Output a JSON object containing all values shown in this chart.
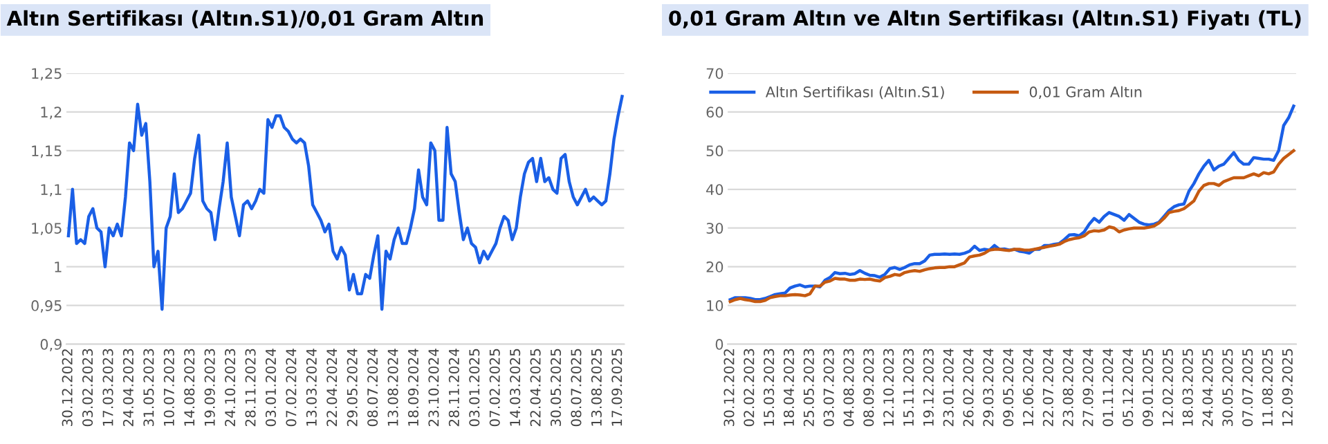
{
  "chart_data": [
    {
      "type": "line",
      "title": "Altın Sertifikası (Altın.S1)/0,01 Gram Altın",
      "categories": [
        "30.12.2022",
        null,
        null,
        null,
        null,
        "03.02.2023",
        null,
        null,
        null,
        null,
        "17.03.2023",
        null,
        null,
        null,
        null,
        "24.04.2023",
        null,
        null,
        null,
        null,
        "31.05.2023",
        null,
        null,
        null,
        null,
        "10.07.2023",
        null,
        null,
        null,
        null,
        "14.08.2023",
        null,
        null,
        null,
        null,
        "19.09.2023",
        null,
        null,
        null,
        null,
        "24.10.2023",
        null,
        null,
        null,
        null,
        "28.11.2023",
        null,
        null,
        null,
        null,
        "03.01.2024",
        null,
        null,
        null,
        null,
        "07.02.2024",
        null,
        null,
        null,
        null,
        "13.03.2024",
        null,
        null,
        null,
        null,
        "22.04.2024",
        null,
        null,
        null,
        null,
        "29.05.2024",
        null,
        null,
        null,
        null,
        "08.07.2024",
        null,
        null,
        null,
        null,
        "13.08.2024",
        null,
        null,
        null,
        null,
        "18.09.2024",
        null,
        null,
        null,
        null,
        "23.10.2024",
        null,
        null,
        null,
        null,
        "28.11.2024",
        null,
        null,
        null,
        null,
        "03.01.2025",
        null,
        null,
        null,
        null,
        "07.02.2025",
        null,
        null,
        null,
        null,
        "14.03.2025",
        null,
        null,
        null,
        null,
        "22.04.2025",
        null,
        null,
        null,
        null,
        "30.05.2025",
        null,
        null,
        null,
        null,
        "08.07.2025",
        null,
        null,
        null,
        null,
        "13.08.2025",
        null,
        null,
        null,
        null,
        "17.09.2025",
        null
      ],
      "series": [
        {
          "color": "#1a5fe6",
          "values": [
            1.04,
            1.1,
            1.03,
            1.035,
            1.03,
            1.065,
            1.075,
            1.05,
            1.045,
            1.0,
            1.05,
            1.04,
            1.055,
            1.04,
            1.09,
            1.16,
            1.15,
            1.21,
            1.17,
            1.185,
            1.11,
            1.0,
            1.02,
            0.945,
            1.05,
            1.065,
            1.12,
            1.07,
            1.075,
            1.085,
            1.095,
            1.14,
            1.17,
            1.085,
            1.075,
            1.07,
            1.035,
            1.075,
            1.11,
            1.16,
            1.09,
            1.065,
            1.04,
            1.08,
            1.085,
            1.075,
            1.085,
            1.1,
            1.095,
            1.19,
            1.18,
            1.195,
            1.195,
            1.18,
            1.175,
            1.165,
            1.16,
            1.165,
            1.16,
            1.13,
            1.08,
            1.07,
            1.06,
            1.045,
            1.055,
            1.02,
            1.01,
            1.025,
            1.015,
            0.97,
            0.99,
            0.965,
            0.965,
            0.99,
            0.985,
            1.015,
            1.04,
            0.945,
            1.02,
            1.01,
            1.035,
            1.05,
            1.03,
            1.03,
            1.05,
            1.075,
            1.125,
            1.09,
            1.08,
            1.16,
            1.15,
            1.06,
            1.06,
            1.18,
            1.12,
            1.11,
            1.07,
            1.035,
            1.05,
            1.03,
            1.025,
            1.005,
            1.02,
            1.01,
            1.02,
            1.03,
            1.05,
            1.065,
            1.06,
            1.035,
            1.05,
            1.09,
            1.12,
            1.135,
            1.14,
            1.11,
            1.14,
            1.11,
            1.115,
            1.1,
            1.095,
            1.14,
            1.145,
            1.11,
            1.09,
            1.08,
            1.09,
            1.1,
            1.085,
            1.09,
            1.085,
            1.08,
            1.085,
            1.12,
            1.165,
            1.195,
            1.22
          ]
        }
      ],
      "ylim": [
        0.9,
        1.25
      ],
      "yticks": [
        {
          "value": 0.9,
          "label": "0,9"
        },
        {
          "value": 0.95,
          "label": "0,95"
        },
        {
          "value": 1,
          "label": "1"
        },
        {
          "value": 1.05,
          "label": "1,05"
        },
        {
          "value": 1.1,
          "label": "1,1"
        },
        {
          "value": 1.15,
          "label": "1,15"
        },
        {
          "value": 1.2,
          "label": "1,2"
        },
        {
          "value": 1.25,
          "label": "1,25"
        }
      ],
      "grid": "y",
      "legend": false,
      "marker": "none",
      "line_style": "solid"
    },
    {
      "type": "line",
      "title": "0,01 Gram Altın ve Altın Sertifikası (Altın.S1) Fiyatı (TL)",
      "categories": [
        "30.12.2022",
        null,
        null,
        null,
        "02.02.2023",
        null,
        null,
        null,
        "15.03.2023",
        null,
        null,
        null,
        "18.04.2023",
        null,
        null,
        null,
        "25.05.2023",
        null,
        null,
        null,
        "03.07.2023",
        null,
        null,
        null,
        "04.08.2023",
        null,
        null,
        null,
        "08.09.2023",
        null,
        null,
        null,
        "12.10.2023",
        null,
        null,
        null,
        "15.11.2023",
        null,
        null,
        null,
        "19.12.2023",
        null,
        null,
        null,
        "23.01.2024",
        null,
        null,
        null,
        "26.02.2024",
        null,
        null,
        null,
        "29.03.2024",
        null,
        null,
        null,
        "09.05.2024",
        null,
        null,
        null,
        "12.06.2024",
        null,
        null,
        null,
        "22.07.2024",
        null,
        null,
        null,
        "23.08.2024",
        null,
        null,
        null,
        "27.09.2024",
        null,
        null,
        null,
        "01.11.2024",
        null,
        null,
        null,
        "05.12.2024",
        null,
        null,
        null,
        "09.01.2025",
        null,
        null,
        null,
        "12.02.2025",
        null,
        null,
        null,
        "18.03.2025",
        null,
        null,
        null,
        "24.04.2025",
        null,
        null,
        null,
        "30.05.2025",
        null,
        null,
        null,
        "07.07.2025",
        null,
        null,
        null,
        "11.08.2025",
        null,
        null,
        null,
        "12.09.2025",
        null
      ],
      "series": [
        {
          "name": "Altın Sertifikası (Altın.S1)",
          "color": "#1a5fe6",
          "values": [
            11.5,
            12,
            12,
            12,
            11.8,
            11.5,
            11.5,
            11.8,
            12.3,
            12.8,
            13,
            13.2,
            14.5,
            15,
            15.3,
            14.8,
            15,
            15,
            14.8,
            16.5,
            17.2,
            18.5,
            18.2,
            18.3,
            18,
            18.2,
            19,
            18.3,
            17.8,
            17.7,
            17.3,
            18,
            19.5,
            19.8,
            19.3,
            19.8,
            20.5,
            20.8,
            20.8,
            21.5,
            23,
            23.2,
            23.2,
            23.3,
            23.2,
            23.3,
            23.2,
            23.5,
            24,
            25.3,
            24.2,
            24.5,
            24.3,
            25.5,
            24.5,
            24.6,
            24.3,
            24.5,
            24,
            23.8,
            23.5,
            24.5,
            24.5,
            25.5,
            25.5,
            25.8,
            26,
            27,
            28.2,
            28.3,
            28,
            29,
            31,
            32.5,
            31.5,
            33,
            34,
            33.5,
            33,
            32,
            33.5,
            32.5,
            31.5,
            31,
            30.8,
            31,
            31.5,
            33,
            34.5,
            35.5,
            36,
            36.2,
            39.5,
            41.5,
            44,
            46,
            47.5,
            45,
            46,
            46.5,
            48,
            49.5,
            47.5,
            46.5,
            46.5,
            48.2,
            48,
            47.8,
            47.8,
            47.5,
            50,
            56.5,
            58.5,
            61.5
          ]
        },
        {
          "name": "0,01 Gram Altın",
          "color": "#c55a11",
          "values": [
            11,
            11.5,
            11.8,
            11.5,
            11.3,
            11,
            11,
            11.3,
            12,
            12.3,
            12.5,
            12.5,
            12.7,
            12.8,
            12.7,
            12.5,
            13,
            15,
            15,
            16,
            16.3,
            17,
            16.8,
            16.8,
            16.5,
            16.5,
            16.8,
            16.7,
            16.8,
            16.5,
            16.3,
            17.2,
            17.5,
            18,
            17.8,
            18.5,
            18.8,
            19,
            18.8,
            19.2,
            19.5,
            19.7,
            19.8,
            19.8,
            20,
            20,
            20.5,
            21,
            22.5,
            22.8,
            23,
            23.5,
            24.3,
            24.5,
            24.5,
            24.3,
            24.2,
            24.5,
            24.5,
            24.3,
            24.3,
            24.5,
            24.8,
            25,
            25.3,
            25.5,
            25.8,
            26.5,
            27,
            27.3,
            27.5,
            28,
            29,
            29.3,
            29.2,
            29.5,
            30.3,
            30,
            29,
            29.5,
            29.8,
            30,
            30,
            30,
            30.2,
            30.5,
            31.3,
            32.5,
            34,
            34.3,
            34.5,
            35,
            36,
            37,
            39.5,
            41,
            41.5,
            41.5,
            41,
            42,
            42.5,
            43,
            43,
            43,
            43.5,
            44,
            43.5,
            44.3,
            44,
            44.5,
            46.5,
            48,
            49,
            50
          ]
        }
      ],
      "ylim": [
        0,
        70
      ],
      "yticks": [
        0,
        10,
        20,
        30,
        40,
        50,
        60,
        70
      ],
      "grid": "y",
      "legend": "top",
      "marker": "none",
      "line_style": "solid"
    }
  ]
}
